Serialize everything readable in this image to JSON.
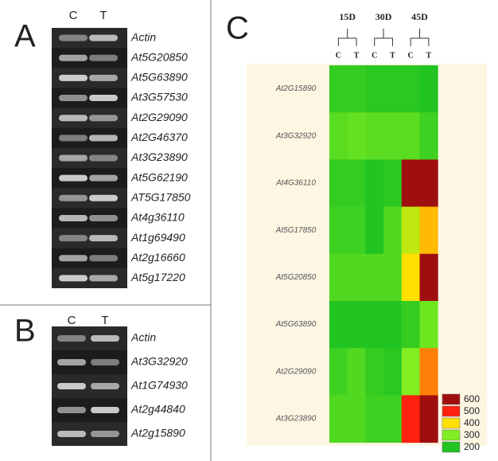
{
  "panel_a": {
    "letter": "A",
    "lanes": [
      "C",
      "T"
    ],
    "genes": [
      "Actin",
      "At5G20850",
      "At5G63890",
      "At3G57530",
      "At2G29090",
      "At2G46370",
      "At3G23890",
      "At5G62190",
      "AT5G17850",
      "At4g36110",
      "At1g69490",
      "At2g16660",
      "At5g17220"
    ]
  },
  "panel_b": {
    "letter": "B",
    "lanes": [
      "C",
      "T"
    ],
    "genes": [
      "Actin",
      "At3G32920",
      "At1G74930",
      "At2g44840",
      "At2g15890"
    ]
  },
  "panel_c": {
    "letter": "C",
    "groups": [
      "15D",
      "30D",
      "45D"
    ],
    "lanes": [
      "C",
      "T",
      "C",
      "T",
      "C",
      "T"
    ],
    "rows": [
      {
        "gene": "At2G15890",
        "values": [
          220,
          220,
          210,
          210,
          210,
          200
        ]
      },
      {
        "gene": "At3G32920",
        "values": [
          260,
          270,
          260,
          260,
          260,
          230
        ]
      },
      {
        "gene": "At4G36110",
        "values": [
          220,
          220,
          200,
          210,
          600,
          600
        ]
      },
      {
        "gene": "At5G17850",
        "values": [
          230,
          230,
          200,
          250,
          350,
          420
        ]
      },
      {
        "gene": "At5G20850",
        "values": [
          250,
          250,
          250,
          250,
          400,
          600
        ]
      },
      {
        "gene": "At5G63890",
        "values": [
          200,
          200,
          200,
          200,
          220,
          280
        ]
      },
      {
        "gene": "At2G29090",
        "values": [
          230,
          250,
          220,
          210,
          300,
          450
        ]
      },
      {
        "gene": "At3G23890",
        "values": [
          250,
          250,
          230,
          230,
          500,
          600
        ]
      }
    ],
    "legend": [
      {
        "value": 600,
        "color": "#a00f0f"
      },
      {
        "value": 500,
        "color": "#ff2010"
      },
      {
        "value": 400,
        "color": "#ffe000"
      },
      {
        "value": 300,
        "color": "#80ee20"
      },
      {
        "value": 200,
        "color": "#22c422"
      }
    ]
  }
}
